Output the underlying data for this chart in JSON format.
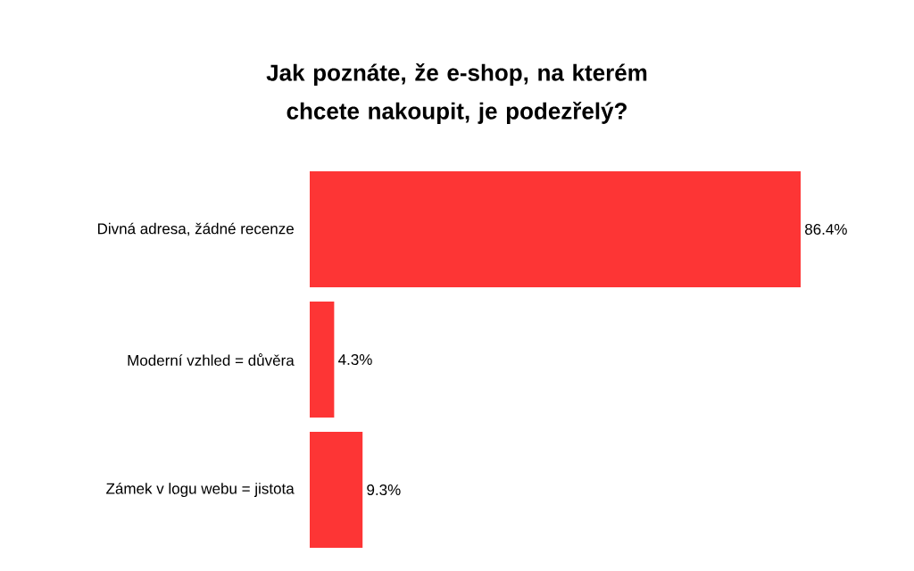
{
  "chart_data": {
    "type": "bar",
    "orientation": "horizontal",
    "title": "Jak poznáte, že e-shop, na kterém chcete nakoupit, je podezřelý?",
    "categories": [
      "Divná adresa, žádné recenze",
      "Moderní vzhled = důvěra",
      "Zámek v logu webu = jistota"
    ],
    "values": [
      86.4,
      4.3,
      9.3
    ],
    "value_labels": [
      "86.4%",
      "4.3%",
      "9.3%"
    ],
    "color": "#fd3535"
  }
}
